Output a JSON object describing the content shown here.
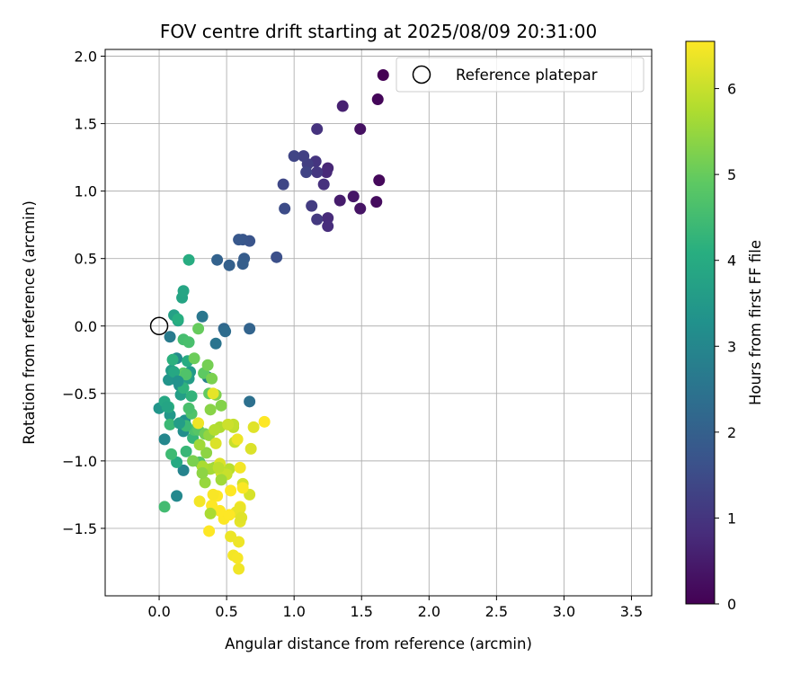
{
  "chart_data": {
    "type": "scatter",
    "title": "FOV centre drift starting at 2025/08/09 20:31:00",
    "xlabel": "Angular distance from reference (arcmin)",
    "ylabel": "Rotation from reference (arcmin)",
    "xlim": [
      -0.4,
      3.65
    ],
    "ylim": [
      -2.0,
      2.05
    ],
    "xticks": [
      "0.0",
      "0.5",
      "1.0",
      "1.5",
      "2.0",
      "2.5",
      "3.0",
      "3.5"
    ],
    "xtick_values": [
      0,
      0.5,
      1.0,
      1.5,
      2.0,
      2.5,
      3.0,
      3.5
    ],
    "yticks": [
      "−1.5",
      "−1.0",
      "−0.5",
      "0.0",
      "0.5",
      "1.0",
      "1.5",
      "2.0"
    ],
    "ytick_values": [
      -1.5,
      -1.0,
      -0.5,
      0,
      0.5,
      1.0,
      1.5,
      2.0
    ],
    "grid": true,
    "legend": {
      "placement": "upper right",
      "entries": [
        "Reference platepar"
      ]
    },
    "reference_point": {
      "x": 0,
      "y": 0,
      "label": "Reference platepar"
    },
    "colorbar": {
      "label": "Hours from first FF file",
      "colormap": "viridis",
      "range": [
        0,
        6.55
      ],
      "ticks": [
        "0",
        "1",
        "2",
        "3",
        "4",
        "5",
        "6"
      ],
      "tick_values": [
        0,
        1,
        2,
        3,
        4,
        5,
        6
      ]
    },
    "series": [
      {
        "points": [
          [
            1.66,
            1.86,
            0.0
          ],
          [
            1.62,
            1.68,
            0.1
          ],
          [
            1.63,
            1.08,
            0.15
          ],
          [
            1.61,
            0.92,
            0.2
          ],
          [
            1.49,
            1.46,
            0.3
          ],
          [
            1.49,
            0.87,
            0.35
          ],
          [
            1.44,
            0.96,
            0.4
          ],
          [
            1.34,
            0.93,
            0.5
          ],
          [
            1.36,
            1.63,
            0.6
          ],
          [
            1.25,
            1.17,
            0.7
          ],
          [
            1.24,
            1.14,
            0.75
          ],
          [
            1.25,
            0.8,
            0.8
          ],
          [
            1.25,
            0.74,
            0.85
          ],
          [
            1.22,
            1.05,
            0.9
          ],
          [
            1.17,
            1.46,
            0.95
          ],
          [
            1.16,
            1.22,
            1.0
          ],
          [
            1.17,
            1.14,
            1.05
          ],
          [
            1.17,
            0.79,
            1.1
          ],
          [
            1.13,
            0.89,
            1.15
          ],
          [
            1.1,
            1.2,
            1.2
          ],
          [
            1.07,
            1.26,
            1.25
          ],
          [
            1.09,
            1.14,
            1.3
          ],
          [
            1.0,
            1.26,
            1.35
          ],
          [
            0.92,
            1.05,
            1.4
          ],
          [
            0.93,
            0.87,
            1.5
          ],
          [
            0.87,
            0.51,
            1.6
          ],
          [
            0.67,
            0.63,
            1.7
          ],
          [
            0.62,
            0.64,
            1.75
          ],
          [
            0.59,
            0.64,
            1.8
          ],
          [
            0.63,
            0.5,
            1.9
          ],
          [
            0.62,
            0.46,
            1.95
          ],
          [
            0.52,
            0.45,
            2.0
          ],
          [
            0.43,
            0.49,
            2.05
          ],
          [
            0.67,
            -0.02,
            2.1
          ],
          [
            0.48,
            -0.02,
            2.2
          ],
          [
            0.49,
            -0.04,
            2.3
          ],
          [
            0.67,
            -0.56,
            2.4
          ],
          [
            0.42,
            -0.13,
            2.5
          ],
          [
            0.32,
            0.07,
            2.6
          ],
          [
            0.08,
            -0.08,
            2.7
          ],
          [
            0.36,
            -0.38,
            2.8
          ],
          [
            0.18,
            -1.07,
            2.9
          ],
          [
            0.04,
            -0.84,
            3.0
          ],
          [
            0.13,
            -1.26,
            3.05
          ],
          [
            0.13,
            -0.24,
            3.1
          ],
          [
            0.1,
            -0.39,
            3.15
          ],
          [
            0.18,
            -0.78,
            3.2
          ],
          [
            0.15,
            -0.44,
            3.25
          ],
          [
            0.19,
            -0.7,
            3.3
          ],
          [
            0.07,
            -0.4,
            3.35
          ],
          [
            0.0,
            -0.61,
            3.4
          ],
          [
            0.08,
            -0.66,
            3.45
          ],
          [
            0.23,
            -0.34,
            3.5
          ],
          [
            0.09,
            -0.33,
            3.55
          ],
          [
            0.22,
            -0.39,
            3.6
          ],
          [
            0.16,
            -0.51,
            3.65
          ],
          [
            0.11,
            0.08,
            3.7
          ],
          [
            0.14,
            0.04,
            3.75
          ],
          [
            0.17,
            0.21,
            3.8
          ],
          [
            0.18,
            0.26,
            3.85
          ],
          [
            0.04,
            -0.56,
            3.9
          ],
          [
            0.13,
            -1.01,
            3.95
          ],
          [
            0.21,
            -0.26,
            4.0
          ],
          [
            0.22,
            0.49,
            4.05
          ],
          [
            0.14,
            0.05,
            4.1
          ],
          [
            0.1,
            -0.25,
            4.15
          ],
          [
            0.07,
            -0.6,
            4.2
          ],
          [
            0.24,
            -0.52,
            4.25
          ],
          [
            0.25,
            -0.83,
            4.3
          ],
          [
            0.2,
            -0.93,
            4.35
          ],
          [
            0.08,
            -0.73,
            4.4
          ],
          [
            0.09,
            -0.95,
            4.45
          ],
          [
            0.04,
            -1.34,
            4.5
          ],
          [
            0.18,
            -0.1,
            4.55
          ],
          [
            0.22,
            -0.12,
            4.6
          ],
          [
            0.26,
            -0.77,
            4.65
          ],
          [
            0.24,
            -0.65,
            4.7
          ],
          [
            0.3,
            -1.01,
            4.75
          ],
          [
            0.29,
            -0.77,
            4.8
          ],
          [
            0.18,
            -0.35,
            4.85
          ],
          [
            0.33,
            -0.35,
            4.9
          ],
          [
            0.37,
            -0.5,
            4.95
          ],
          [
            0.29,
            -0.02,
            5.0
          ],
          [
            0.26,
            -0.24,
            5.05
          ],
          [
            0.34,
            -0.8,
            5.1
          ],
          [
            0.36,
            -0.29,
            5.15
          ],
          [
            0.39,
            -0.39,
            5.2
          ],
          [
            0.42,
            -0.51,
            5.25
          ],
          [
            0.46,
            -0.59,
            5.3
          ],
          [
            0.38,
            -0.62,
            5.35
          ],
          [
            0.35,
            -0.94,
            5.4
          ],
          [
            0.37,
            -0.81,
            5.45
          ],
          [
            0.34,
            -1.16,
            5.5
          ],
          [
            0.41,
            -1.05,
            5.55
          ],
          [
            0.3,
            -0.88,
            5.6
          ],
          [
            0.38,
            -1.06,
            5.65
          ],
          [
            0.32,
            -1.04,
            5.7
          ],
          [
            0.45,
            -0.75,
            5.75
          ],
          [
            0.41,
            -0.77,
            5.8
          ],
          [
            0.52,
            -1.06,
            5.85
          ],
          [
            0.55,
            -0.75,
            5.9
          ],
          [
            0.55,
            -0.73,
            5.95
          ],
          [
            0.56,
            -0.86,
            6.0
          ],
          [
            0.51,
            -0.73,
            6.05
          ],
          [
            0.62,
            -1.17,
            6.1
          ],
          [
            0.67,
            -1.25,
            6.15
          ],
          [
            0.68,
            -0.91,
            6.2
          ],
          [
            0.7,
            -0.75,
            6.25
          ],
          [
            0.6,
            -1.45,
            6.3
          ],
          [
            0.57,
            -1.38,
            6.35
          ],
          [
            0.53,
            -1.56,
            6.38
          ],
          [
            0.59,
            -1.6,
            6.4
          ],
          [
            0.59,
            -1.8,
            6.42
          ],
          [
            0.55,
            -1.7,
            6.45
          ],
          [
            0.58,
            -1.72,
            6.48
          ],
          [
            0.6,
            -1.34,
            6.5
          ],
          [
            0.62,
            -1.2,
            6.52
          ],
          [
            0.48,
            -1.43,
            6.54
          ],
          [
            0.37,
            -1.52,
            6.55
          ],
          [
            0.45,
            -1.37,
            6.55
          ],
          [
            0.39,
            -1.33,
            6.55
          ],
          [
            0.43,
            -1.26,
            6.55
          ],
          [
            0.53,
            -1.22,
            6.55
          ],
          [
            0.52,
            -1.4,
            6.55
          ],
          [
            0.4,
            -1.25,
            6.5
          ],
          [
            0.3,
            -1.3,
            6.45
          ],
          [
            0.29,
            -0.72,
            6.4
          ],
          [
            0.4,
            -0.5,
            6.3
          ],
          [
            0.45,
            -1.02,
            6.2
          ],
          [
            0.46,
            -1.09,
            6.1
          ],
          [
            0.5,
            -1.1,
            6.0
          ],
          [
            0.44,
            -1.05,
            5.9
          ],
          [
            0.6,
            -1.35,
            6.35
          ],
          [
            0.61,
            -1.42,
            6.25
          ],
          [
            0.6,
            -1.05,
            6.45
          ],
          [
            0.78,
            -0.71,
            6.55
          ],
          [
            0.58,
            -0.84,
            6.4
          ],
          [
            0.42,
            -0.87,
            6.2
          ],
          [
            0.46,
            -1.14,
            5.6
          ],
          [
            0.38,
            -1.39,
            5.7
          ],
          [
            0.32,
            -1.09,
            5.4
          ],
          [
            0.25,
            -1.0,
            5.2
          ],
          [
            0.2,
            -0.36,
            4.7
          ],
          [
            0.22,
            -0.61,
            4.6
          ],
          [
            0.2,
            -0.74,
            4.4
          ],
          [
            0.18,
            -0.46,
            4.2
          ],
          [
            0.11,
            -0.34,
            3.9
          ],
          [
            0.06,
            -0.6,
            3.8
          ],
          [
            0.15,
            -0.72,
            3.6
          ],
          [
            0.14,
            -0.41,
            3.3
          ]
        ]
      }
    ]
  }
}
